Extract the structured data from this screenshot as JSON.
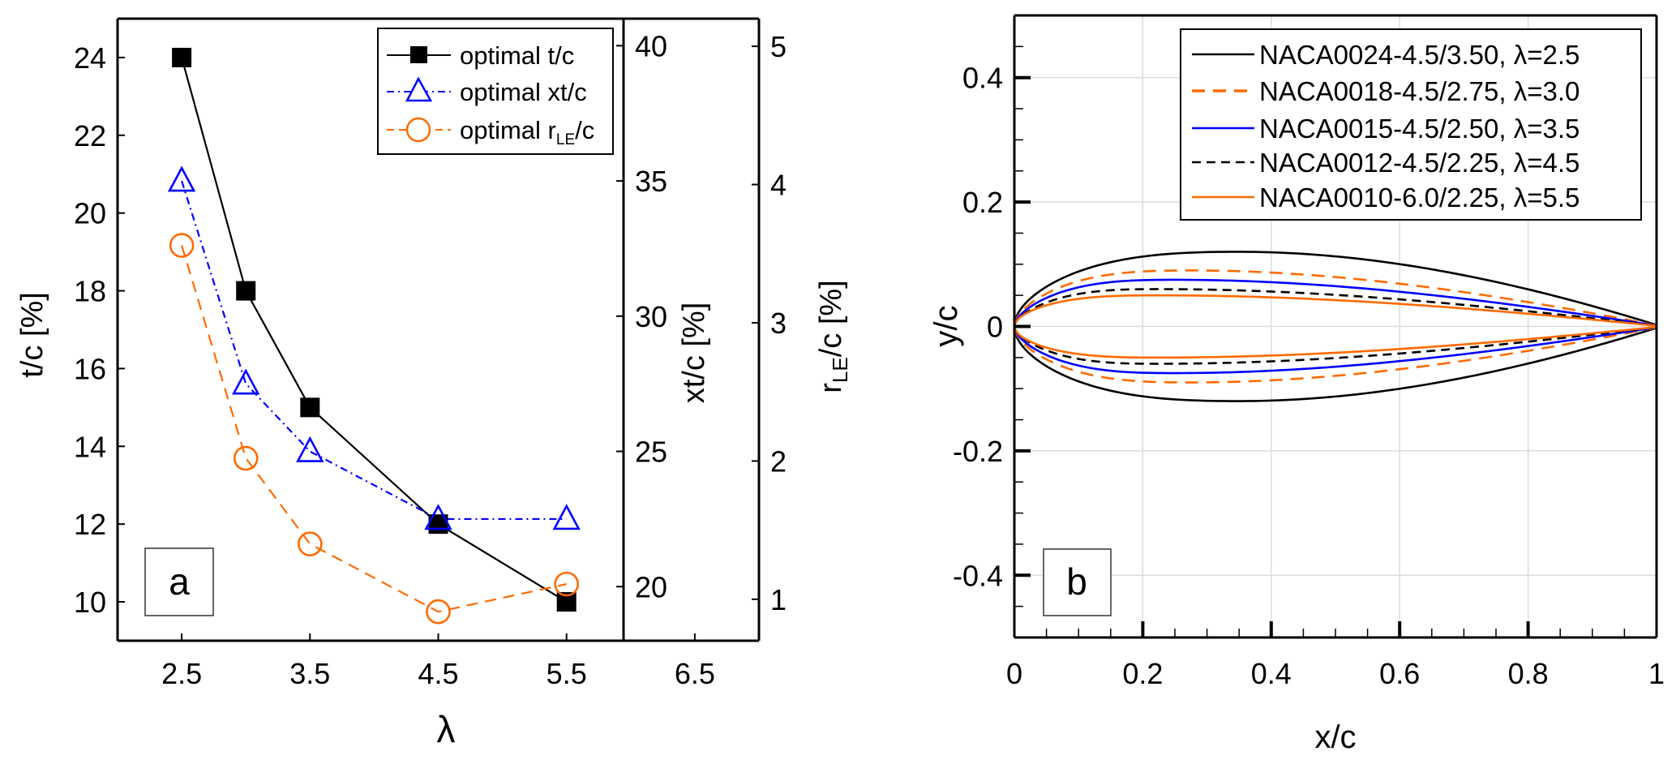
{
  "chart_data": [
    {
      "panel": "a",
      "type": "line",
      "panel_label": "a",
      "xlabel": "λ",
      "xlim": [
        2.0,
        7.0
      ],
      "xticks": [
        2.5,
        3.5,
        4.5,
        5.5,
        6.5
      ],
      "xtick_labels": [
        "2.5",
        "3.5",
        "4.5",
        "5.5",
        "6.5"
      ],
      "axes": {
        "left": {
          "label": "t/c [%]",
          "ylim": [
            9,
            25
          ],
          "ticks": [
            10,
            12,
            14,
            16,
            18,
            20,
            22,
            24
          ],
          "tick_labels": [
            "10",
            "12",
            "14",
            "16",
            "18",
            "20",
            "22",
            "24"
          ]
        },
        "right1": {
          "label": "xt/c [%]",
          "ylim": [
            18,
            41
          ],
          "ticks": [
            20,
            25,
            30,
            35,
            40
          ],
          "tick_labels": [
            "20",
            "25",
            "30",
            "35",
            "40"
          ]
        },
        "right2": {
          "label_main": "r",
          "label_sub": "LE",
          "label_rest": "/c [%]",
          "ylim": [
            0.7,
            5.2
          ],
          "ticks": [
            1,
            2,
            3,
            4,
            5
          ],
          "tick_labels": [
            "1",
            "2",
            "3",
            "4",
            "5"
          ]
        }
      },
      "legend_position": "top-right",
      "series": [
        {
          "name": "optimal t/c",
          "axis": "left",
          "color": "#000000",
          "marker": "square",
          "dash": "solid",
          "x": [
            2.5,
            3.0,
            3.5,
            4.5,
            5.5
          ],
          "y": [
            24.0,
            18.0,
            15.0,
            12.0,
            10.0
          ]
        },
        {
          "name": "optimal xt/c",
          "axis": "right1",
          "color": "#0000ff",
          "marker": "triangle",
          "dash": "dashdot",
          "x": [
            2.5,
            3.0,
            3.5,
            4.5,
            5.5
          ],
          "y": [
            35.0,
            27.5,
            25.0,
            22.5,
            22.5
          ]
        },
        {
          "name_main": "optimal r",
          "name_sub": "LE",
          "name_rest": "/c",
          "axis": "right2",
          "color": "#ff6a00",
          "marker": "circle",
          "dash": "dashed",
          "x": [
            2.5,
            3.0,
            3.5,
            4.5,
            5.5
          ],
          "y": [
            3.56,
            2.02,
            1.4,
            0.91,
            1.11
          ]
        }
      ]
    },
    {
      "panel": "b",
      "type": "line",
      "panel_label": "b",
      "xlabel": "x/c",
      "ylabel": "y/c",
      "xlim": [
        0,
        1
      ],
      "ylim": [
        -0.5,
        0.5
      ],
      "xticks": [
        0,
        0.2,
        0.4,
        0.6,
        0.8,
        1
      ],
      "xtick_labels": [
        "0",
        "0.2",
        "0.4",
        "0.6",
        "0.8",
        "1"
      ],
      "yticks": [
        -0.4,
        -0.2,
        0,
        0.2,
        0.4
      ],
      "ytick_labels": [
        "-0.4",
        "-0.2",
        "0",
        "0.2",
        "0.4"
      ],
      "grid": true,
      "legend_position": "top-right",
      "series": [
        {
          "name": "NACA0024-4.5/3.50, λ=2.5",
          "color": "#000000",
          "dash": "solid",
          "thickness": 0.24,
          "le_index": 4.5,
          "xt": 0.35
        },
        {
          "name": "NACA0018-4.5/2.75, λ=3.0",
          "color": "#ff6a00",
          "dash": "dashed-long",
          "thickness": 0.18,
          "le_index": 4.5,
          "xt": 0.275
        },
        {
          "name": "NACA0015-4.5/2.50, λ=3.5",
          "color": "#0000ff",
          "dash": "solid",
          "thickness": 0.15,
          "le_index": 4.5,
          "xt": 0.25
        },
        {
          "name": "NACA0012-4.5/2.25, λ=4.5",
          "color": "#000000",
          "dash": "dashed",
          "thickness": 0.12,
          "le_index": 4.5,
          "xt": 0.225
        },
        {
          "name": "NACA0010-6.0/2.25, λ=5.5",
          "color": "#ff6a00",
          "dash": "solid",
          "thickness": 0.1,
          "le_index": 6.0,
          "xt": 0.225
        }
      ]
    }
  ]
}
